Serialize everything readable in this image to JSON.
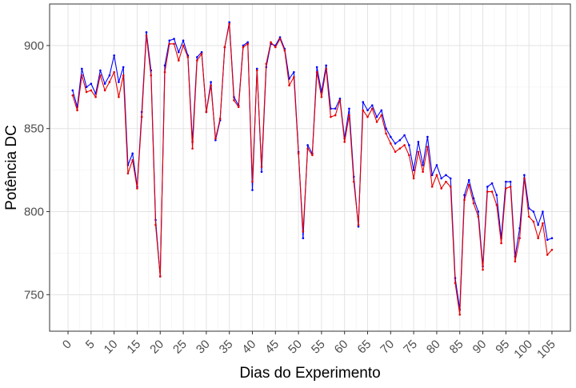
{
  "chart_data": {
    "type": "line",
    "title": "",
    "xlabel": "Dias do Experimento",
    "ylabel": "Potência DC",
    "xlim": [
      -4,
      109
    ],
    "ylim": [
      728,
      925
    ],
    "x_ticks": [
      0,
      5,
      10,
      15,
      20,
      25,
      30,
      35,
      40,
      45,
      50,
      55,
      60,
      65,
      70,
      75,
      80,
      85,
      90,
      95,
      100,
      105
    ],
    "x_tick_labels": [
      "0",
      "5",
      "10",
      "15",
      "20",
      "25",
      "30",
      "35",
      "40",
      "45",
      "50",
      "55",
      "60",
      "65",
      "70",
      "75",
      "80",
      "85",
      "90",
      "95",
      "100",
      "105"
    ],
    "y_ticks": [
      750,
      800,
      850,
      900
    ],
    "y_tick_labels": [
      "750",
      "800",
      "850",
      "900"
    ],
    "grid": true,
    "legend": "none",
    "series": [
      {
        "color": "#0000ff",
        "x": [
          1,
          2,
          3,
          4,
          5,
          6,
          7,
          8,
          9,
          10,
          11,
          12,
          13,
          14,
          15,
          16,
          17,
          18,
          19,
          20,
          21,
          22,
          23,
          24,
          25,
          26,
          27,
          28,
          29,
          30,
          31,
          32,
          33,
          34,
          35,
          36,
          37,
          38,
          39,
          40,
          41,
          42,
          43,
          44,
          45,
          46,
          47,
          48,
          49,
          50,
          51,
          52,
          53,
          54,
          55,
          56,
          57,
          58,
          59,
          60,
          61,
          62,
          63,
          64,
          65,
          66,
          67,
          68,
          69,
          70,
          71,
          72,
          73,
          74,
          75,
          76,
          77,
          78,
          79,
          80,
          81,
          82,
          83,
          84,
          85,
          86,
          87,
          88,
          89,
          90,
          91,
          92,
          93,
          94,
          95,
          96,
          97,
          98,
          99,
          100,
          101,
          102,
          103,
          104,
          105
        ],
        "y": [
          873,
          863,
          886,
          875,
          877,
          871,
          885,
          877,
          882,
          894,
          878,
          887,
          828,
          835,
          815,
          860,
          908,
          885,
          795,
          761,
          888,
          903,
          904,
          896,
          903,
          894,
          842,
          893,
          896,
          860,
          878,
          843,
          855,
          899,
          914,
          869,
          864,
          900,
          902,
          813,
          886,
          824,
          887,
          901,
          900,
          905,
          898,
          880,
          884,
          836,
          784,
          840,
          835,
          887,
          872,
          888,
          862,
          862,
          868,
          844,
          862,
          821,
          791,
          866,
          861,
          864,
          857,
          861,
          850,
          845,
          841,
          843,
          846,
          840,
          825,
          842,
          828,
          845,
          822,
          828,
          820,
          822,
          820,
          760,
          741,
          810,
          819,
          808,
          800,
          767,
          815,
          817,
          810,
          784,
          818,
          818,
          773,
          790,
          822,
          802,
          800,
          792,
          800,
          783,
          784
        ]
      },
      {
        "color": "#e60000",
        "x": [
          1,
          2,
          3,
          4,
          5,
          6,
          7,
          8,
          9,
          10,
          11,
          12,
          13,
          14,
          15,
          16,
          17,
          18,
          19,
          20,
          21,
          22,
          23,
          24,
          25,
          26,
          27,
          28,
          29,
          30,
          31,
          32,
          33,
          34,
          35,
          36,
          37,
          38,
          39,
          40,
          41,
          42,
          43,
          44,
          45,
          46,
          47,
          48,
          49,
          50,
          51,
          52,
          53,
          54,
          55,
          56,
          57,
          58,
          59,
          60,
          61,
          62,
          63,
          64,
          65,
          66,
          67,
          68,
          69,
          70,
          71,
          72,
          73,
          74,
          75,
          76,
          77,
          78,
          79,
          80,
          81,
          82,
          83,
          84,
          85,
          86,
          87,
          88,
          89,
          90,
          91,
          92,
          93,
          94,
          95,
          96,
          97,
          98,
          99,
          100,
          101,
          102,
          103,
          104,
          105
        ],
        "y": [
          870,
          861,
          882,
          872,
          873,
          869,
          882,
          873,
          878,
          884,
          869,
          882,
          823,
          831,
          814,
          857,
          906,
          882,
          792,
          761,
          884,
          901,
          901,
          891,
          900,
          893,
          838,
          891,
          895,
          860,
          876,
          844,
          856,
          899,
          913,
          867,
          863,
          899,
          901,
          818,
          885,
          827,
          889,
          902,
          899,
          904,
          897,
          876,
          881,
          835,
          788,
          838,
          834,
          884,
          869,
          886,
          857,
          858,
          867,
          842,
          858,
          818,
          792,
          861,
          857,
          862,
          854,
          858,
          847,
          841,
          836,
          838,
          840,
          834,
          820,
          836,
          824,
          839,
          815,
          822,
          814,
          818,
          815,
          757,
          738,
          807,
          816,
          805,
          797,
          765,
          812,
          812,
          804,
          781,
          814,
          815,
          770,
          784,
          820,
          797,
          794,
          784,
          793,
          774,
          777
        ]
      }
    ]
  }
}
